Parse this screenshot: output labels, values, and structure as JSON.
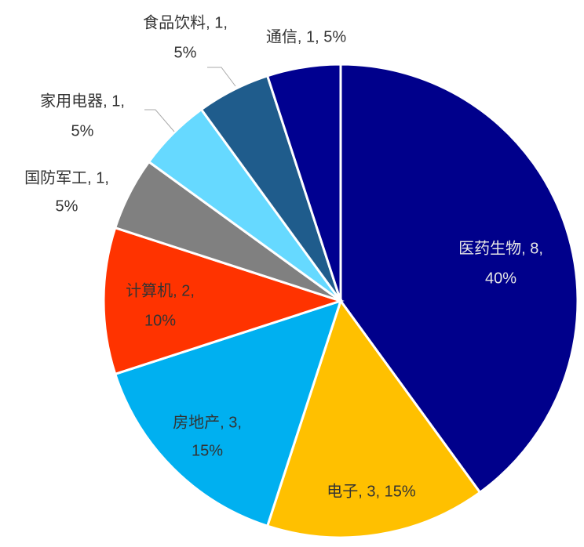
{
  "chart_data": {
    "type": "pie",
    "categories": [
      "医药生物",
      "电子",
      "房地产",
      "计算机",
      "国防军工",
      "家用电器",
      "食品饮料",
      "通信"
    ],
    "values": [
      8,
      3,
      3,
      2,
      1,
      1,
      1,
      1
    ],
    "value_labels": [
      [
        "医药生物, 8,",
        "40%"
      ],
      [
        "电子, 3, 15%"
      ],
      [
        "房地产, 3,",
        "15%"
      ],
      [
        "计算机, 2,",
        "10%"
      ],
      [
        "国防军工, 1,",
        "5%"
      ],
      [
        "家用电器, 1,",
        "5%"
      ],
      [
        "食品饮料, 1,",
        "5%"
      ],
      [
        "通信, 1, 5%"
      ]
    ],
    "colors": [
      "#00008b",
      "#ffc000",
      "#00b0f0",
      "#ff3300",
      "#808080",
      "#66d9ff",
      "#1f5c8c",
      "#000090"
    ]
  }
}
